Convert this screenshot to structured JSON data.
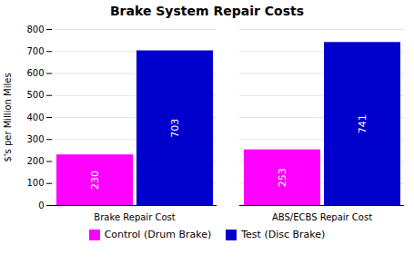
{
  "chart_data": {
    "type": "bar",
    "title": "Brake System Repair Costs",
    "ylabel": "$'s per Million Miles",
    "categories": [
      "Brake Repair Cost",
      "ABS/ECBS Repair Cost"
    ],
    "series": [
      {
        "name": "Control (Drum Brake)",
        "color": "#FF00FF",
        "values": [
          230,
          253
        ]
      },
      {
        "name": "Test (Disc Brake)",
        "color": "#0000CD",
        "values": [
          703,
          741
        ]
      }
    ],
    "ylim": [
      0,
      800
    ],
    "yticks": [
      0,
      100,
      200,
      300,
      400,
      500,
      600,
      700,
      800
    ],
    "grid": true,
    "data_labels": true,
    "legend": "bottom"
  }
}
